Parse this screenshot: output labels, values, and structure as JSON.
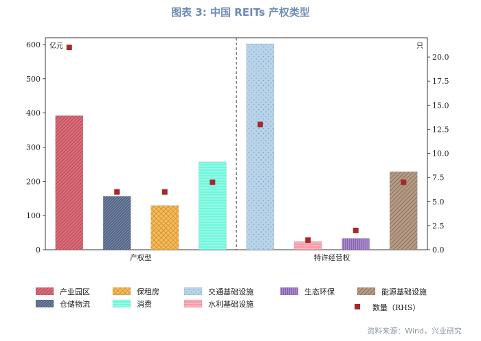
{
  "title": "图表 3:  中国 REITs 产权类型",
  "source": "资料来源：Wind，兴业研究",
  "chart_data": {
    "type": "bar",
    "groups": [
      {
        "label": "产权型",
        "categories": [
          "产业园区",
          "仓储物流",
          "保租房",
          "消费"
        ]
      },
      {
        "label": "特许经营权",
        "categories": [
          "交通基础设施",
          "水利基础设施",
          "生态环保",
          "能源基础设施"
        ]
      }
    ],
    "categories": [
      "产业园区",
      "仓储物流",
      "保租房",
      "消费",
      "交通基础设施",
      "水利基础设施",
      "生态环保",
      "能源基础设施"
    ],
    "series": [
      {
        "name": "",
        "axis": "left",
        "unit": "亿元",
        "values": [
          392,
          156,
          129,
          257,
          602,
          24,
          33,
          228
        ]
      },
      {
        "name": "数量（RHS）",
        "axis": "right",
        "unit": "只",
        "values": [
          21,
          6,
          6,
          7,
          13,
          1,
          2,
          7
        ]
      }
    ],
    "colors": [
      "#e06a78",
      "#4f6286",
      "#f7bb5a",
      "#6ef7dc",
      "#b8d4ea",
      "#f79aa7",
      "#a887cc",
      "#b59a86"
    ],
    "marker_color": "#a8262c",
    "yleft": {
      "label": "亿元",
      "lim": [
        0,
        620
      ],
      "ticks": [
        0,
        100,
        200,
        300,
        400,
        500,
        600
      ]
    },
    "yright": {
      "label": "只",
      "lim": [
        0,
        22
      ],
      "ticks": [
        "0.0",
        "2.5",
        "5.0",
        "7.5",
        "10.0",
        "12.5",
        "15.0",
        "17.5",
        "20.0"
      ]
    },
    "legend": {
      "placement": "bottom",
      "entries": [
        "产业园区",
        "保租房",
        "交通基础设施",
        "生态环保",
        "能源基础设施",
        "仓储物流",
        "消费",
        "水利基础设施",
        "数量（RHS）"
      ]
    }
  }
}
